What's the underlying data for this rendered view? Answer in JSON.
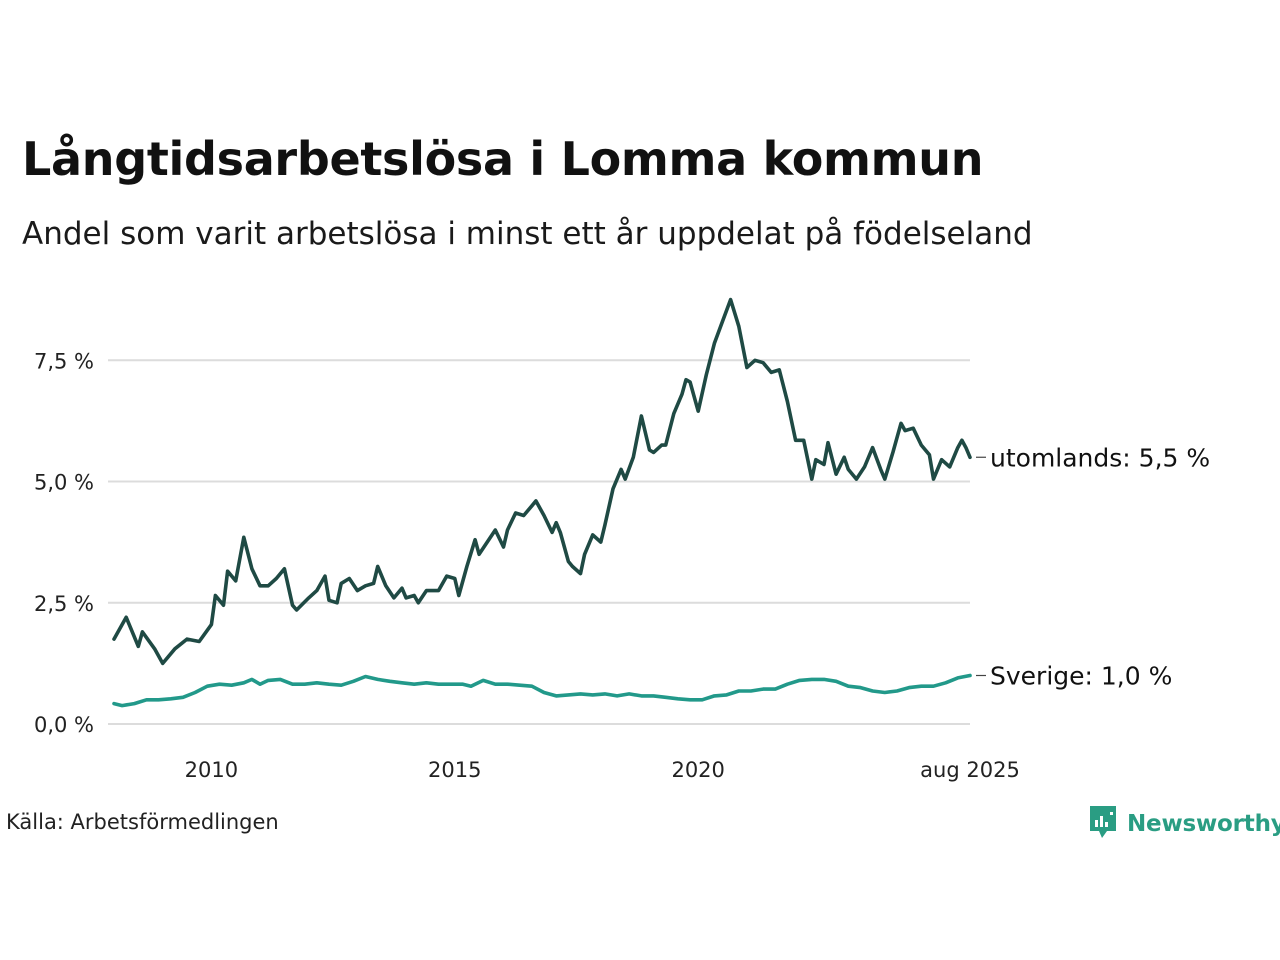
{
  "header": {
    "title": "Långtidsarbetslösa i Lomma kommun",
    "subtitle": "Andel som varit arbetslösa i minst ett år uppdelat på födelseland"
  },
  "footer": {
    "source": "Källa: Arbetsförmedlingen",
    "brand": "Newsworthy",
    "brand_icon": "newsworthy-logo-icon"
  },
  "colors": {
    "utomlands": "#1f4a44",
    "sverige": "#22998a",
    "grid": "#dcdcdc",
    "brand": "#2a9d83"
  },
  "chart_data": {
    "type": "line",
    "title": "Långtidsarbetslösa i Lomma kommun",
    "subtitle": "Andel som varit arbetslösa i minst ett år uppdelat på födelseland",
    "xlabel": "",
    "ylabel": "",
    "ylim": [
      0,
      9
    ],
    "xlim": [
      "2008-01",
      "2025-08"
    ],
    "grid": true,
    "x_ticks": [
      {
        "date": "2010-01",
        "label": "2010"
      },
      {
        "date": "2015-01",
        "label": "2015"
      },
      {
        "date": "2020-01",
        "label": "2020"
      },
      {
        "date": "2025-08",
        "label": "aug 2025"
      }
    ],
    "y_ticks": [
      {
        "value": 0,
        "label": "0,0 %"
      },
      {
        "value": 2.5,
        "label": "2,5 %"
      },
      {
        "value": 5,
        "label": "5,0 %"
      },
      {
        "value": 7.5,
        "label": "7,5 %"
      }
    ],
    "series": [
      {
        "name": "utomlands",
        "end_label": "utomlands: 5,5 %",
        "color": "#1f4a44",
        "points": [
          [
            "2008-01",
            1.75
          ],
          [
            "2008-04",
            2.2
          ],
          [
            "2008-07",
            1.6
          ],
          [
            "2008-08",
            1.9
          ],
          [
            "2008-11",
            1.55
          ],
          [
            "2009-01",
            1.25
          ],
          [
            "2009-04",
            1.55
          ],
          [
            "2009-07",
            1.75
          ],
          [
            "2009-10",
            1.7
          ],
          [
            "2010-01",
            2.05
          ],
          [
            "2010-02",
            2.65
          ],
          [
            "2010-04",
            2.45
          ],
          [
            "2010-05",
            3.15
          ],
          [
            "2010-07",
            2.95
          ],
          [
            "2010-09",
            3.85
          ],
          [
            "2010-11",
            3.2
          ],
          [
            "2011-01",
            2.85
          ],
          [
            "2011-03",
            2.85
          ],
          [
            "2011-05",
            3.0
          ],
          [
            "2011-07",
            3.2
          ],
          [
            "2011-09",
            2.45
          ],
          [
            "2011-10",
            2.35
          ],
          [
            "2012-01",
            2.6
          ],
          [
            "2012-03",
            2.75
          ],
          [
            "2012-05",
            3.05
          ],
          [
            "2012-06",
            2.55
          ],
          [
            "2012-08",
            2.5
          ],
          [
            "2012-09",
            2.9
          ],
          [
            "2012-11",
            3.0
          ],
          [
            "2013-01",
            2.75
          ],
          [
            "2013-03",
            2.85
          ],
          [
            "2013-05",
            2.9
          ],
          [
            "2013-06",
            3.25
          ],
          [
            "2013-08",
            2.85
          ],
          [
            "2013-10",
            2.6
          ],
          [
            "2013-12",
            2.8
          ],
          [
            "2014-01",
            2.6
          ],
          [
            "2014-03",
            2.65
          ],
          [
            "2014-04",
            2.5
          ],
          [
            "2014-06",
            2.75
          ],
          [
            "2014-09",
            2.75
          ],
          [
            "2014-11",
            3.05
          ],
          [
            "2015-01",
            3.0
          ],
          [
            "2015-02",
            2.65
          ],
          [
            "2015-04",
            3.25
          ],
          [
            "2015-06",
            3.8
          ],
          [
            "2015-07",
            3.5
          ],
          [
            "2015-09",
            3.75
          ],
          [
            "2015-11",
            4.0
          ],
          [
            "2016-01",
            3.65
          ],
          [
            "2016-02",
            4.0
          ],
          [
            "2016-04",
            4.35
          ],
          [
            "2016-06",
            4.3
          ],
          [
            "2016-08",
            4.5
          ],
          [
            "2016-09",
            4.6
          ],
          [
            "2016-11",
            4.3
          ],
          [
            "2017-01",
            3.95
          ],
          [
            "2017-02",
            4.15
          ],
          [
            "2017-03",
            3.95
          ],
          [
            "2017-05",
            3.35
          ],
          [
            "2017-06",
            3.25
          ],
          [
            "2017-08",
            3.1
          ],
          [
            "2017-09",
            3.5
          ],
          [
            "2017-11",
            3.9
          ],
          [
            "2018-01",
            3.75
          ],
          [
            "2018-02",
            4.1
          ],
          [
            "2018-04",
            4.85
          ],
          [
            "2018-06",
            5.25
          ],
          [
            "2018-07",
            5.05
          ],
          [
            "2018-09",
            5.5
          ],
          [
            "2018-11",
            6.35
          ],
          [
            "2019-01",
            5.65
          ],
          [
            "2019-02",
            5.6
          ],
          [
            "2019-04",
            5.75
          ],
          [
            "2019-05",
            5.75
          ],
          [
            "2019-07",
            6.4
          ],
          [
            "2019-09",
            6.8
          ],
          [
            "2019-10",
            7.1
          ],
          [
            "2019-11",
            7.05
          ],
          [
            "2020-01",
            6.45
          ],
          [
            "2020-03",
            7.2
          ],
          [
            "2020-05",
            7.85
          ],
          [
            "2020-07",
            8.3
          ],
          [
            "2020-09",
            8.75
          ],
          [
            "2020-11",
            8.2
          ],
          [
            "2021-01",
            7.35
          ],
          [
            "2021-03",
            7.5
          ],
          [
            "2021-05",
            7.45
          ],
          [
            "2021-07",
            7.25
          ],
          [
            "2021-09",
            7.3
          ],
          [
            "2021-11",
            6.65
          ],
          [
            "2022-01",
            5.85
          ],
          [
            "2022-03",
            5.85
          ],
          [
            "2022-05",
            5.05
          ],
          [
            "2022-06",
            5.45
          ],
          [
            "2022-08",
            5.35
          ],
          [
            "2022-09",
            5.8
          ],
          [
            "2022-11",
            5.15
          ],
          [
            "2023-01",
            5.5
          ],
          [
            "2023-02",
            5.25
          ],
          [
            "2023-04",
            5.05
          ],
          [
            "2023-06",
            5.3
          ],
          [
            "2023-08",
            5.7
          ],
          [
            "2023-10",
            5.25
          ],
          [
            "2023-11",
            5.05
          ],
          [
            "2024-01",
            5.6
          ],
          [
            "2024-03",
            6.2
          ],
          [
            "2024-04",
            6.05
          ],
          [
            "2024-06",
            6.1
          ],
          [
            "2024-08",
            5.75
          ],
          [
            "2024-10",
            5.55
          ],
          [
            "2024-11",
            5.05
          ],
          [
            "2025-01",
            5.45
          ],
          [
            "2025-03",
            5.3
          ],
          [
            "2025-05",
            5.7
          ],
          [
            "2025-06",
            5.85
          ],
          [
            "2025-07",
            5.7
          ],
          [
            "2025-08",
            5.5
          ]
        ]
      },
      {
        "name": "Sverige",
        "end_label": "Sverige: 1,0 %",
        "color": "#22998a",
        "points": [
          [
            "2008-01",
            0.42
          ],
          [
            "2008-03",
            0.38
          ],
          [
            "2008-06",
            0.42
          ],
          [
            "2008-09",
            0.5
          ],
          [
            "2008-12",
            0.5
          ],
          [
            "2009-03",
            0.52
          ],
          [
            "2009-06",
            0.55
          ],
          [
            "2009-09",
            0.65
          ],
          [
            "2009-12",
            0.78
          ],
          [
            "2010-03",
            0.82
          ],
          [
            "2010-06",
            0.8
          ],
          [
            "2010-09",
            0.85
          ],
          [
            "2010-11",
            0.92
          ],
          [
            "2011-01",
            0.82
          ],
          [
            "2011-03",
            0.9
          ],
          [
            "2011-06",
            0.92
          ],
          [
            "2011-09",
            0.82
          ],
          [
            "2011-12",
            0.82
          ],
          [
            "2012-03",
            0.85
          ],
          [
            "2012-06",
            0.82
          ],
          [
            "2012-09",
            0.8
          ],
          [
            "2012-12",
            0.88
          ],
          [
            "2013-03",
            0.98
          ],
          [
            "2013-06",
            0.92
          ],
          [
            "2013-09",
            0.88
          ],
          [
            "2013-12",
            0.85
          ],
          [
            "2014-03",
            0.82
          ],
          [
            "2014-06",
            0.85
          ],
          [
            "2014-09",
            0.82
          ],
          [
            "2014-12",
            0.82
          ],
          [
            "2015-03",
            0.82
          ],
          [
            "2015-05",
            0.78
          ],
          [
            "2015-08",
            0.9
          ],
          [
            "2015-11",
            0.82
          ],
          [
            "2016-02",
            0.82
          ],
          [
            "2016-05",
            0.8
          ],
          [
            "2016-08",
            0.78
          ],
          [
            "2016-11",
            0.65
          ],
          [
            "2017-02",
            0.58
          ],
          [
            "2017-05",
            0.6
          ],
          [
            "2017-08",
            0.62
          ],
          [
            "2017-11",
            0.6
          ],
          [
            "2018-02",
            0.62
          ],
          [
            "2018-05",
            0.58
          ],
          [
            "2018-08",
            0.62
          ],
          [
            "2018-11",
            0.58
          ],
          [
            "2019-02",
            0.58
          ],
          [
            "2019-05",
            0.55
          ],
          [
            "2019-08",
            0.52
          ],
          [
            "2019-11",
            0.5
          ],
          [
            "2020-02",
            0.5
          ],
          [
            "2020-05",
            0.58
          ],
          [
            "2020-08",
            0.6
          ],
          [
            "2020-11",
            0.68
          ],
          [
            "2021-02",
            0.68
          ],
          [
            "2021-05",
            0.72
          ],
          [
            "2021-08",
            0.72
          ],
          [
            "2021-11",
            0.82
          ],
          [
            "2022-02",
            0.9
          ],
          [
            "2022-05",
            0.92
          ],
          [
            "2022-08",
            0.92
          ],
          [
            "2022-11",
            0.88
          ],
          [
            "2023-02",
            0.78
          ],
          [
            "2023-05",
            0.75
          ],
          [
            "2023-08",
            0.68
          ],
          [
            "2023-11",
            0.65
          ],
          [
            "2024-02",
            0.68
          ],
          [
            "2024-05",
            0.75
          ],
          [
            "2024-08",
            0.78
          ],
          [
            "2024-11",
            0.78
          ],
          [
            "2025-02",
            0.85
          ],
          [
            "2025-05",
            0.95
          ],
          [
            "2025-08",
            1.0
          ]
        ]
      }
    ]
  }
}
